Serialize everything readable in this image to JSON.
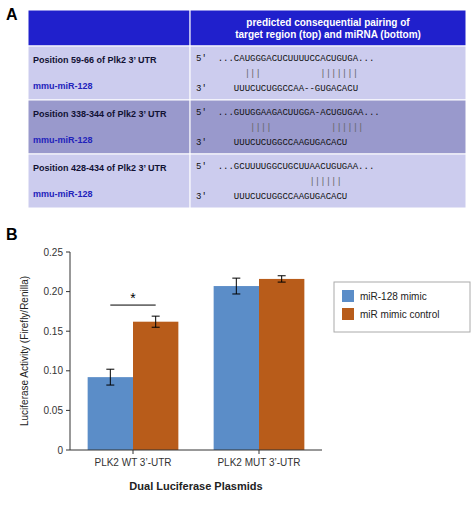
{
  "chart_data": [
    {
      "type": "table",
      "panel_label": "A",
      "header": "predicted consequential pairing of\ntarget region (top) and miRNA (bottom)",
      "color": "#2020cc",
      "colors": [
        "#ccccee",
        "#9999cc",
        "#ccccee"
      ],
      "rows": [
        {
          "left_label": "Position 59-66 of Plk2 3’ UTR",
          "mir_label": "mmu-miR-128",
          "seq_top": "5′  ...CAUGGGACUCUUUUCCACUGUGA...",
          "pairing": "         |||           |||||||",
          "seq_bot": "3′     UUUCUCUGGCCAA--GUGACACU"
        },
        {
          "left_label": "Position 338-344 of Plk2 3’ UTR",
          "mir_label": "mmu-miR-128",
          "seq_top": "5′  ...GUUGGAAGACUUGGA-ACUGUGAA...",
          "pairing": "          ||||           ||||||",
          "seq_bot": "3′     UUUCUCUGGCCAAGUGACACU"
        },
        {
          "left_label": "Position 428-434 of Plk2 3’ UTR",
          "mir_label": "mmu-miR-128",
          "seq_top": "5′  ...GCUUUUGGCUGCUUAACUGUGAA...",
          "pairing": "                     ||||||",
          "seq_bot": "3′     UUUCUCUGGCCAAGUGACACU"
        }
      ]
    },
    {
      "type": "bar",
      "panel_label": "B",
      "xlabel": "Dual Luciferase Plasmids",
      "ylabel": "Luciferase Activity (Firefly/Renilla)",
      "categories": [
        "PLK2 WT 3’-UTR",
        "PLK2 MUT 3’-UTR"
      ],
      "series": [
        {
          "name": "miR-128 mimic",
          "color": "#5b8dc8",
          "values": [
            0.092,
            0.207
          ],
          "errors": [
            0.01,
            0.01
          ]
        },
        {
          "name": "miR mimic control",
          "color": "#b85c1a",
          "values": [
            0.162,
            0.216
          ],
          "errors": [
            0.007,
            0.004
          ]
        }
      ],
      "ylim": [
        0,
        0.25
      ],
      "yticks": [
        0,
        0.05,
        {
          "value": 0.1,
          "label": "0.10"
        },
        0.15,
        {
          "value": 0.2,
          "label": "0.20"
        },
        0.25
      ],
      "annotations": [
        {
          "text": "*",
          "category": "PLK2 WT 3’-UTR",
          "y": 0.183
        }
      ],
      "grid": false,
      "legend": "right"
    }
  ]
}
